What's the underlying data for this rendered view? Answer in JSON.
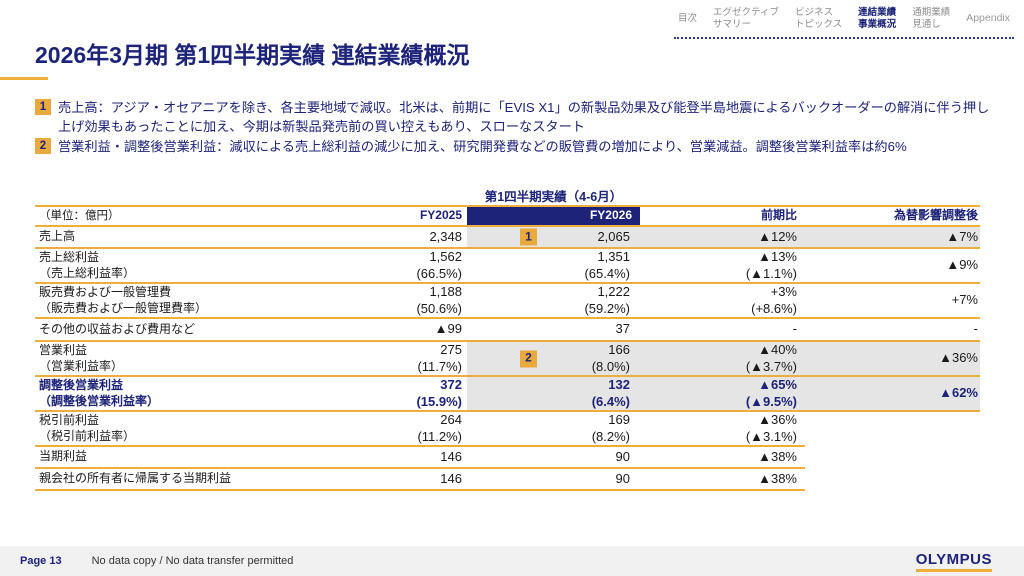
{
  "nav": {
    "items": [
      {
        "label": "目次"
      },
      {
        "label": "エグゼクティブ\nサマリー"
      },
      {
        "label": "ビジネス\nトピックス"
      },
      {
        "label": "連結業績\n事業概況",
        "active": true
      },
      {
        "label": "通期業績\n見通し"
      },
      {
        "label": "Appendix"
      }
    ]
  },
  "title": "2026年3月期 第1四半期実績 連結業績概況",
  "highlights": [
    {
      "num": "1",
      "text": "売上高：アジア・オセアニアを除き、各主要地域で減収。北米は、前期に「EVIS X1」の新製品効果及び能登半島地震によるバックオーダーの解消に伴う押し上げ効果もあったことに加え、今期は新製品発売前の買い控えもあり、スローなスタート"
    },
    {
      "num": "2",
      "text": "営業利益・調整後営業利益：減収による売上総利益の減少に加え、研究開発費などの販管費の増加により、営業減益。調整後営業利益率は約6%"
    }
  ],
  "table": {
    "caption": "第1四半期実績（4-6月）",
    "unit_label": "（単位：億円）",
    "columns": {
      "fy2025": "FY2025",
      "fy2026": "FY2026",
      "yoy": "前期比",
      "fx": "為替影響調整後"
    },
    "rows": [
      {
        "label": "売上高",
        "badge": "1",
        "fy2025": "2,348",
        "fy2026": "2,065",
        "yoy": "▲12%",
        "fx": "▲7%"
      },
      {
        "label": "売上総利益\n（売上総利益率）",
        "fy2025": "1,562\n(66.5%)",
        "fy2026": "1,351\n(65.4%)",
        "yoy": "▲13%\n(▲1.1%)",
        "fx": "▲9%"
      },
      {
        "label": "販売費および一般管理費\n（販売費および一般管理費率）",
        "fy2025": "1,188\n(50.6%)",
        "fy2026": "1,222\n(59.2%)",
        "yoy": "+3%\n(+8.6%)",
        "fx": "+7%"
      },
      {
        "label": "その他の収益および費用など",
        "fy2025": "▲99",
        "fy2026": "37",
        "yoy": "-",
        "fx": "-"
      },
      {
        "label": "営業利益\n（営業利益率）",
        "badge": "2",
        "fy2025": "275\n(11.7%)",
        "fy2026": "166\n(8.0%)",
        "yoy": "▲40%\n(▲3.7%)",
        "fx": "▲36%"
      },
      {
        "label": "調整後営業利益\n（調整後営業利益率）",
        "fy2025": "372\n(15.9%)",
        "fy2026": "132\n(6.4%)",
        "yoy": "▲65%\n(▲9.5%)",
        "fx": "▲62%"
      },
      {
        "label": "税引前利益\n（税引前利益率）",
        "fy2025": "264\n(11.2%)",
        "fy2026": "169\n(8.2%)",
        "yoy": "▲36%\n(▲3.1%)",
        "fx": ""
      },
      {
        "label": "当期利益",
        "fy2025": "146",
        "fy2026": "90",
        "yoy": "▲38%",
        "fx": ""
      },
      {
        "label": "親会社の所有者に帰属する当期利益",
        "fy2025": "146",
        "fy2026": "90",
        "yoy": "▲38%",
        "fx": ""
      }
    ]
  },
  "footer": {
    "page": "Page 13",
    "notice": "No data copy / No data transfer permitted",
    "logo": "OLYMPUS"
  },
  "colors": {
    "navy": "#1C2379",
    "gold": "#EFAE3B",
    "row_shade": "#E5E5E5"
  }
}
